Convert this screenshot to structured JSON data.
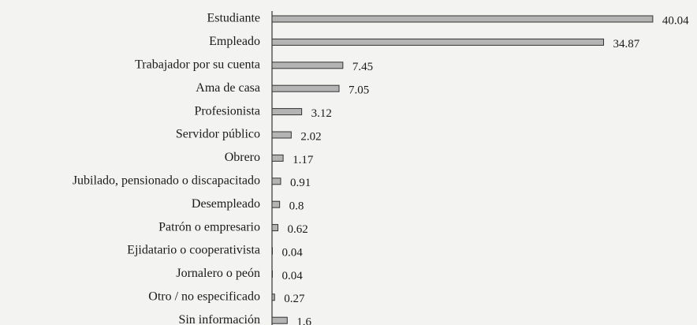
{
  "chart_data": {
    "type": "bar",
    "orientation": "horizontal",
    "categories": [
      "Estudiante",
      "Empleado",
      "Trabajador por su cuenta",
      "Ama de casa",
      "Profesionista",
      "Servidor público",
      "Obrero",
      "Jubilado, pensionado o discapacitado",
      "Desempleado",
      "Patrón o empresario",
      "Ejidatario o cooperativista",
      "Jornalero o peón",
      "Otro / no especificado",
      "Sin información"
    ],
    "values": [
      40.04,
      34.87,
      7.45,
      7.05,
      3.12,
      2.02,
      1.17,
      0.91,
      0.8,
      0.62,
      0.04,
      0.04,
      0.27,
      1.6
    ],
    "color": "#b4b4b4"
  }
}
